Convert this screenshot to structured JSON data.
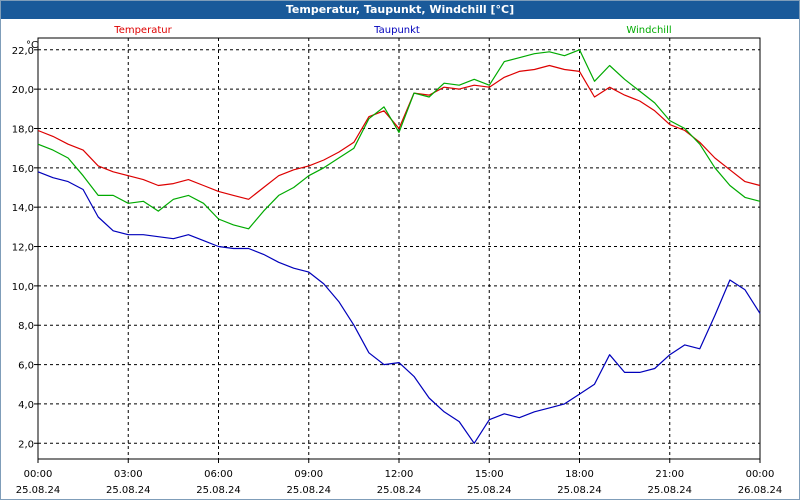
{
  "window": {
    "title": "Temperatur, Taupunkt, Windchill [°C]"
  },
  "chart_data": {
    "type": "line",
    "title": "Temperatur, Taupunkt, Windchill [°C]",
    "ylabel": "°C",
    "ylim": [
      1.2,
      22.6
    ],
    "yticks": [
      2.0,
      4.0,
      6.0,
      8.0,
      10.0,
      12.0,
      14.0,
      16.0,
      18.0,
      20.0,
      22.0
    ],
    "ytick_labels": [
      "2,0",
      "4,0",
      "6,0",
      "8,0",
      "10,0",
      "12,0",
      "14,0",
      "16,0",
      "18,0",
      "20,0",
      "22,0"
    ],
    "xlim": [
      0,
      24
    ],
    "xticks": [
      0,
      3,
      6,
      9,
      12,
      15,
      18,
      21,
      24
    ],
    "xtick_labels": [
      {
        "time": "00:00",
        "date": "25.08.24"
      },
      {
        "time": "03:00",
        "date": "25.08.24"
      },
      {
        "time": "06:00",
        "date": "25.08.24"
      },
      {
        "time": "09:00",
        "date": "25.08.24"
      },
      {
        "time": "12:00",
        "date": "25.08.24"
      },
      {
        "time": "15:00",
        "date": "25.08.24"
      },
      {
        "time": "18:00",
        "date": "25.08.24"
      },
      {
        "time": "21:00",
        "date": "25.08.24"
      },
      {
        "time": "00:00",
        "date": "26.08.24"
      }
    ],
    "grid": true,
    "legend": "top",
    "series": [
      {
        "name": "Temperatur",
        "color": "#dd0000",
        "x": [
          0,
          0.5,
          1,
          1.5,
          2,
          2.5,
          3,
          3.5,
          4,
          4.5,
          5,
          5.5,
          6,
          6.5,
          7,
          7.5,
          8,
          8.5,
          9,
          9.5,
          10,
          10.5,
          11,
          11.5,
          12,
          12.5,
          13,
          13.5,
          14,
          14.5,
          15,
          15.5,
          16,
          16.5,
          17,
          17.5,
          18,
          18.5,
          19,
          19.5,
          20,
          20.5,
          21,
          21.5,
          22,
          22.5,
          23,
          23.5,
          24
        ],
        "values": [
          17.9,
          17.6,
          17.2,
          16.9,
          16.1,
          15.8,
          15.6,
          15.4,
          15.1,
          15.2,
          15.4,
          15.1,
          14.8,
          14.6,
          14.4,
          15.0,
          15.6,
          15.9,
          16.1,
          16.4,
          16.8,
          17.3,
          18.6,
          18.9,
          18.0,
          19.8,
          19.7,
          20.1,
          20.0,
          20.2,
          20.1,
          20.6,
          20.9,
          21.0,
          21.2,
          21.0,
          20.9,
          19.6,
          20.1,
          19.7,
          19.4,
          18.9,
          18.2,
          17.9,
          17.3,
          16.5,
          15.9,
          15.3,
          15.1
        ]
      },
      {
        "name": "Taupunkt",
        "color": "#0000bb",
        "x": [
          0,
          0.5,
          1,
          1.5,
          2,
          2.5,
          3,
          3.5,
          4,
          4.5,
          5,
          5.5,
          6,
          6.5,
          7,
          7.5,
          8,
          8.5,
          9,
          9.5,
          10,
          10.5,
          11,
          11.5,
          12,
          12.5,
          13,
          13.5,
          14,
          14.5,
          15,
          15.5,
          16,
          16.5,
          17,
          17.5,
          18,
          18.5,
          19,
          19.5,
          20,
          20.5,
          21,
          21.5,
          22,
          22.5,
          23,
          23.5,
          24
        ],
        "values": [
          15.8,
          15.5,
          15.3,
          14.9,
          13.5,
          12.8,
          12.6,
          12.6,
          12.5,
          12.4,
          12.6,
          12.3,
          12.0,
          11.9,
          11.9,
          11.6,
          11.2,
          10.9,
          10.7,
          10.1,
          9.2,
          8.0,
          6.6,
          6.0,
          6.1,
          5.4,
          4.3,
          3.6,
          3.1,
          2.0,
          3.2,
          3.5,
          3.3,
          3.6,
          3.8,
          4.0,
          4.5,
          5.0,
          6.5,
          5.6,
          5.6,
          5.8,
          6.5,
          7.0,
          6.8,
          8.5,
          10.3,
          9.8,
          8.6
        ]
      },
      {
        "name": "Windchill",
        "color": "#00aa00",
        "x": [
          0,
          0.5,
          1,
          1.5,
          2,
          2.5,
          3,
          3.5,
          4,
          4.5,
          5,
          5.5,
          6,
          6.5,
          7,
          7.5,
          8,
          8.5,
          9,
          9.5,
          10,
          10.5,
          11,
          11.5,
          12,
          12.5,
          13,
          13.5,
          14,
          14.5,
          15,
          15.5,
          16,
          16.5,
          17,
          17.5,
          18,
          18.5,
          19,
          19.5,
          20,
          20.5,
          21,
          21.5,
          22,
          22.5,
          23,
          23.5,
          24
        ],
        "values": [
          17.2,
          16.9,
          16.5,
          15.6,
          14.6,
          14.6,
          14.2,
          14.3,
          13.8,
          14.4,
          14.6,
          14.2,
          13.4,
          13.1,
          12.9,
          13.8,
          14.6,
          15.0,
          15.6,
          16.0,
          16.5,
          17.0,
          18.5,
          19.1,
          17.8,
          19.8,
          19.6,
          20.3,
          20.2,
          20.5,
          20.2,
          21.4,
          21.6,
          21.8,
          21.9,
          21.7,
          22.0,
          20.4,
          21.2,
          20.5,
          19.9,
          19.3,
          18.4,
          18.0,
          17.2,
          16.0,
          15.1,
          14.5,
          14.3
        ]
      }
    ]
  }
}
